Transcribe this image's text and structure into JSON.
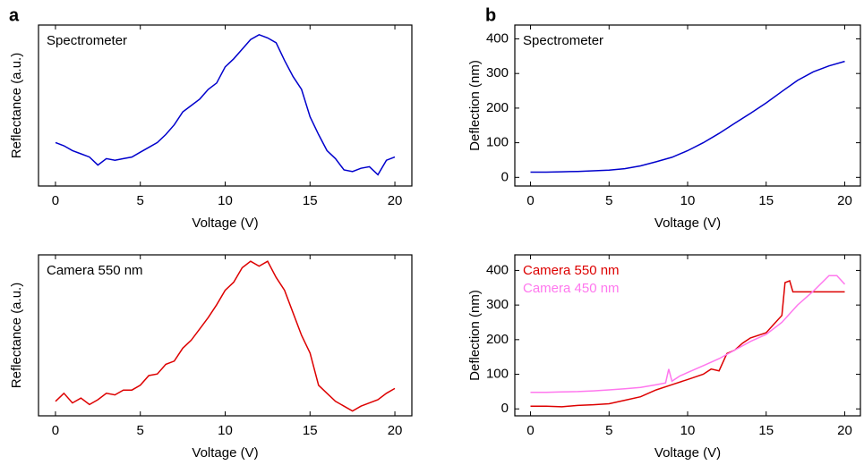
{
  "chart_data": [
    {
      "type": "line",
      "panel": "a",
      "xlabel": "Voltage (V)",
      "ylabel": "Reflectance (a.u.)",
      "xlim": [
        -1,
        21
      ],
      "xticks": [
        0,
        5,
        10,
        15,
        20
      ],
      "ylim": [
        0,
        1
      ],
      "yticks": [],
      "legend_colored": false,
      "series": [
        {
          "name": "Spectrometer",
          "color": "#0000cc",
          "x": [
            0,
            0.5,
            1,
            1.5,
            2,
            2.5,
            3,
            3.5,
            4,
            4.5,
            5,
            5.5,
            6,
            6.5,
            7,
            7.5,
            8,
            8.5,
            9,
            9.5,
            10,
            10.5,
            11,
            11.5,
            12,
            12.5,
            13,
            13.5,
            14,
            14.5,
            15,
            15.5,
            16,
            16.5,
            17,
            17.5,
            18,
            18.5,
            19,
            19.5,
            20
          ],
          "values": [
            0.27,
            0.25,
            0.22,
            0.2,
            0.18,
            0.13,
            0.17,
            0.16,
            0.17,
            0.18,
            0.21,
            0.24,
            0.27,
            0.32,
            0.38,
            0.46,
            0.5,
            0.54,
            0.6,
            0.64,
            0.74,
            0.79,
            0.85,
            0.91,
            0.94,
            0.92,
            0.89,
            0.78,
            0.68,
            0.6,
            0.43,
            0.32,
            0.22,
            0.17,
            0.1,
            0.09,
            0.11,
            0.12,
            0.07,
            0.16,
            0.18
          ]
        }
      ]
    },
    {
      "type": "line",
      "panel": "b",
      "xlabel": "Voltage (V)",
      "ylabel": "Deflection (nm)",
      "xlim": [
        -1,
        21
      ],
      "xticks": [
        0,
        5,
        10,
        15,
        20
      ],
      "ylim": [
        -25,
        440
      ],
      "yticks": [
        0,
        100,
        200,
        300,
        400
      ],
      "legend_colored": false,
      "series": [
        {
          "name": "Spectrometer",
          "color": "#0000cc",
          "x": [
            0,
            1,
            2,
            3,
            4,
            5,
            6,
            7,
            8,
            9,
            10,
            11,
            12,
            13,
            14,
            15,
            16,
            17,
            18,
            19,
            20
          ],
          "values": [
            15,
            15,
            16,
            17,
            19,
            21,
            25,
            33,
            45,
            58,
            77,
            100,
            127,
            156,
            185,
            215,
            248,
            280,
            305,
            322,
            335
          ]
        }
      ]
    },
    {
      "type": "line",
      "xlabel": "Voltage (V)",
      "ylabel": "Reflectance (a.u.)",
      "xlim": [
        -1,
        21
      ],
      "xticks": [
        0,
        5,
        10,
        15,
        20
      ],
      "ylim": [
        0,
        1
      ],
      "yticks": [],
      "legend_colored": false,
      "series": [
        {
          "name": "Camera 550 nm",
          "color": "#dd0000",
          "x": [
            0,
            0.5,
            1,
            1.5,
            2,
            2.5,
            3,
            3.5,
            4,
            4.5,
            5,
            5.5,
            6,
            6.5,
            7,
            7.5,
            8,
            8.5,
            9,
            9.5,
            10,
            10.5,
            11,
            11.5,
            12,
            12.5,
            13,
            13.5,
            14,
            14.5,
            15,
            15.5,
            16,
            16.5,
            17,
            17.5,
            18,
            18.5,
            19,
            19.5,
            20
          ],
          "values": [
            0.09,
            0.14,
            0.08,
            0.11,
            0.07,
            0.1,
            0.14,
            0.13,
            0.16,
            0.16,
            0.19,
            0.25,
            0.26,
            0.32,
            0.34,
            0.42,
            0.47,
            0.54,
            0.61,
            0.69,
            0.78,
            0.83,
            0.92,
            0.96,
            0.93,
            0.96,
            0.86,
            0.78,
            0.64,
            0.5,
            0.39,
            0.19,
            0.14,
            0.09,
            0.06,
            0.03,
            0.06,
            0.08,
            0.1,
            0.14,
            0.17
          ]
        }
      ]
    },
    {
      "type": "line",
      "xlabel": "Voltage (V)",
      "ylabel": "Deflection (nm)",
      "xlim": [
        -1,
        21
      ],
      "xticks": [
        0,
        5,
        10,
        15,
        20
      ],
      "ylim": [
        -20,
        445
      ],
      "yticks": [
        0,
        100,
        200,
        300,
        400
      ],
      "legend_colored": true,
      "series": [
        {
          "name": "Camera 550 nm",
          "color": "#dd0000",
          "x": [
            0,
            1,
            2,
            3,
            4,
            5,
            6,
            7,
            8,
            9,
            10,
            11,
            11.5,
            12,
            12.5,
            13,
            13.5,
            14,
            15,
            15.5,
            16,
            16.2,
            16.5,
            16.7,
            17,
            18,
            19,
            20
          ],
          "values": [
            8,
            8,
            6,
            10,
            12,
            15,
            25,
            35,
            55,
            70,
            85,
            100,
            115,
            110,
            160,
            170,
            190,
            205,
            220,
            245,
            270,
            365,
            370,
            338,
            338,
            338,
            338,
            338
          ]
        },
        {
          "name": "Camera 450 nm",
          "color": "#ff77ee",
          "x": [
            0,
            1,
            2,
            3,
            4,
            5,
            6,
            7,
            8,
            8.6,
            8.8,
            9,
            9.5,
            10,
            11,
            12,
            13,
            14,
            15,
            16,
            17,
            18,
            19,
            19.5,
            20
          ],
          "values": [
            48,
            48,
            49,
            50,
            52,
            55,
            58,
            62,
            70,
            75,
            115,
            80,
            95,
            105,
            125,
            145,
            170,
            195,
            215,
            250,
            300,
            340,
            385,
            385,
            360
          ]
        }
      ]
    }
  ]
}
